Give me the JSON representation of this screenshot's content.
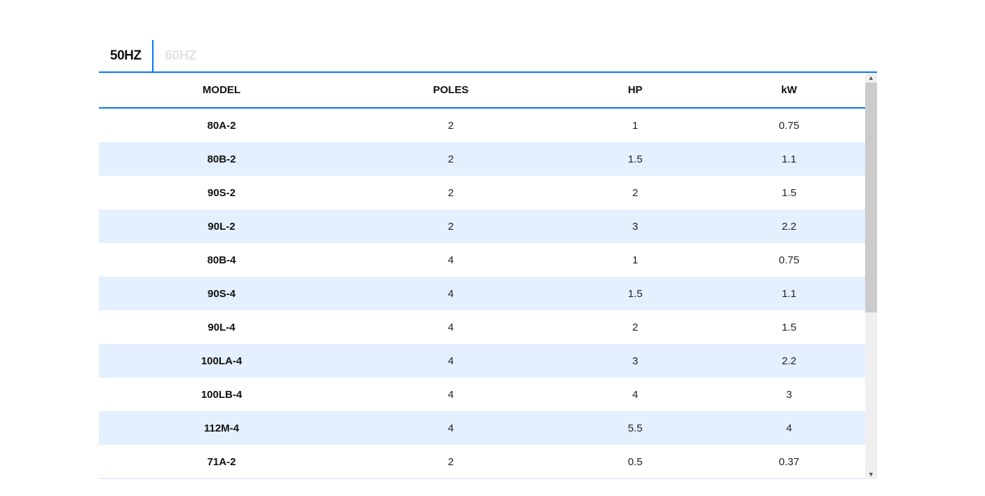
{
  "tabs": [
    {
      "label": "50HZ",
      "active": true
    },
    {
      "label": "60HZ",
      "active": false
    }
  ],
  "table": {
    "headers": [
      "MODEL",
      "POLES",
      "HP",
      "kW"
    ],
    "rows": [
      [
        "80A-2",
        "2",
        "1",
        "0.75"
      ],
      [
        "80B-2",
        "2",
        "1.5",
        "1.1"
      ],
      [
        "90S-2",
        "2",
        "2",
        "1.5"
      ],
      [
        "90L-2",
        "2",
        "3",
        "2.2"
      ],
      [
        "80B-4",
        "4",
        "1",
        "0.75"
      ],
      [
        "90S-4",
        "4",
        "1.5",
        "1.1"
      ],
      [
        "90L-4",
        "4",
        "2",
        "1.5"
      ],
      [
        "100LA-4",
        "4",
        "3",
        "2.2"
      ],
      [
        "100LB-4",
        "4",
        "4",
        "3"
      ],
      [
        "112M-4",
        "4",
        "5.5",
        "4"
      ],
      [
        "71A-2",
        "2",
        "0.5",
        "0.37"
      ]
    ]
  },
  "colors": {
    "accent": "#0a78f0",
    "stripe": "#e4f0fd",
    "inactive_tab": "#e0e3e8"
  },
  "scrollbar": {
    "up_icon": "chevron-up-icon",
    "down_icon": "chevron-down-icon"
  }
}
